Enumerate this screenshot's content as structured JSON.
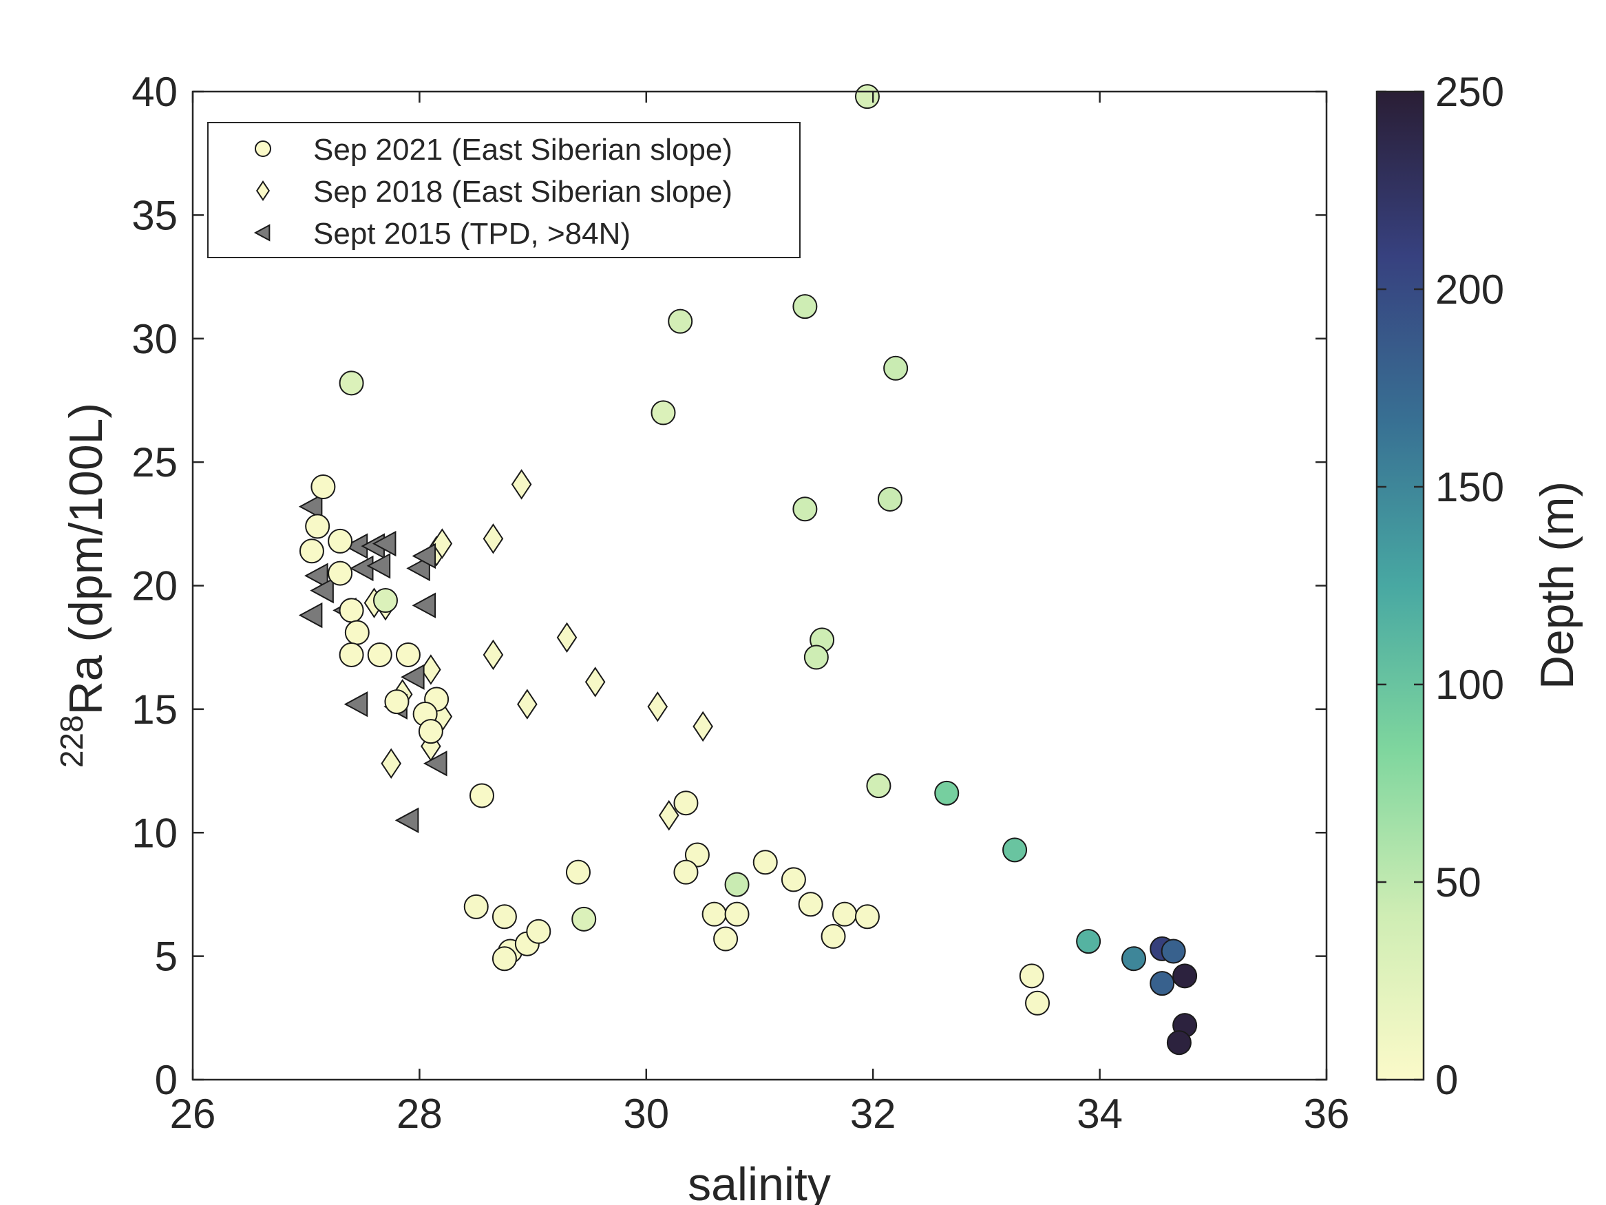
{
  "chart_data": {
    "type": "scatter",
    "xlabel": "salinity",
    "ylabel_sup": "228",
    "ylabel_main": "Ra (dpm/100L)",
    "xlim": [
      26,
      36
    ],
    "ylim": [
      0,
      40
    ],
    "xticks": [
      "26",
      "28",
      "30",
      "32",
      "34",
      "36"
    ],
    "yticks": [
      "0",
      "5",
      "10",
      "15",
      "20",
      "25",
      "30",
      "35",
      "40"
    ],
    "colorbar": {
      "label": "Depth (m)",
      "range": [
        0,
        250
      ],
      "ticks": [
        "0",
        "50",
        "100",
        "150",
        "200",
        "250"
      ],
      "colors": [
        "#fbfac9",
        "#cfedb4",
        "#7fd69e",
        "#48a8a2",
        "#387093",
        "#37417f",
        "#2a1e35"
      ]
    },
    "legend": {
      "placement": "top-left",
      "entries": [
        {
          "label": "Sep 2021 (East Siberian slope)",
          "marker": "circle"
        },
        {
          "label": "Sep 2018 (East Siberian slope)",
          "marker": "diamond"
        },
        {
          "label": "Sept 2015 (TPD, >84N)",
          "marker": "triangle-left"
        }
      ]
    },
    "series": [
      {
        "name": "Sep 2018 (East Siberian slope)",
        "marker": "diamond",
        "points": [
          [
            28.9,
            24.1,
            5
          ],
          [
            28.65,
            21.9,
            5
          ],
          [
            28.15,
            21.4,
            5
          ],
          [
            28.2,
            21.7,
            5
          ],
          [
            27.6,
            19.3,
            5
          ],
          [
            27.7,
            19.2,
            5
          ],
          [
            29.3,
            17.9,
            5
          ],
          [
            28.1,
            16.6,
            5
          ],
          [
            28.65,
            17.2,
            5
          ],
          [
            29.55,
            16.1,
            5
          ],
          [
            27.85,
            15.6,
            5
          ],
          [
            28.95,
            15.2,
            5
          ],
          [
            30.1,
            15.1,
            5
          ],
          [
            30.5,
            14.3,
            5
          ],
          [
            28.2,
            14.7,
            5
          ],
          [
            28.1,
            13.5,
            5
          ],
          [
            27.75,
            12.8,
            5
          ],
          [
            30.2,
            10.7,
            5
          ]
        ]
      },
      {
        "name": "Sept 2015 (TPD, >84N)",
        "marker": "triangle-left",
        "points": [
          [
            27.05,
            23.2,
            null
          ],
          [
            27.1,
            20.4,
            null
          ],
          [
            27.15,
            19.8,
            null
          ],
          [
            27.05,
            18.8,
            null
          ],
          [
            27.35,
            19.0,
            null
          ],
          [
            27.5,
            20.7,
            null
          ],
          [
            27.45,
            21.6,
            null
          ],
          [
            27.6,
            21.6,
            null
          ],
          [
            27.7,
            21.7,
            null
          ],
          [
            27.65,
            20.8,
            null
          ],
          [
            28.0,
            20.7,
            null
          ],
          [
            28.05,
            21.2,
            null
          ],
          [
            28.05,
            19.2,
            null
          ],
          [
            27.95,
            16.3,
            null
          ],
          [
            27.45,
            15.2,
            null
          ],
          [
            27.8,
            15.1,
            null
          ],
          [
            28.15,
            12.8,
            null
          ],
          [
            27.9,
            10.5,
            null
          ]
        ]
      },
      {
        "name": "Sep 2021 (East Siberian slope)",
        "marker": "circle",
        "points": [
          [
            31.95,
            39.8,
            35
          ],
          [
            30.3,
            30.7,
            38
          ],
          [
            31.4,
            31.3,
            42
          ],
          [
            27.4,
            28.2,
            30
          ],
          [
            32.2,
            28.8,
            45
          ],
          [
            30.15,
            27.0,
            30
          ],
          [
            31.4,
            23.1,
            42
          ],
          [
            32.15,
            23.5,
            45
          ],
          [
            27.15,
            24.0,
            3
          ],
          [
            27.1,
            22.4,
            3
          ],
          [
            27.05,
            21.4,
            3
          ],
          [
            27.3,
            21.8,
            3
          ],
          [
            27.3,
            20.5,
            3
          ],
          [
            27.4,
            19.0,
            3
          ],
          [
            27.45,
            18.1,
            3
          ],
          [
            27.4,
            17.2,
            3
          ],
          [
            27.65,
            17.2,
            3
          ],
          [
            27.9,
            17.2,
            3
          ],
          [
            27.7,
            19.4,
            30
          ],
          [
            28.15,
            15.4,
            3
          ],
          [
            28.05,
            14.8,
            3
          ],
          [
            28.1,
            14.1,
            3
          ],
          [
            27.8,
            15.3,
            3
          ],
          [
            28.55,
            11.5,
            3
          ],
          [
            31.55,
            17.8,
            42
          ],
          [
            31.5,
            17.1,
            42
          ],
          [
            30.35,
            11.2,
            5
          ],
          [
            32.05,
            11.9,
            40
          ],
          [
            32.65,
            11.6,
            90
          ],
          [
            33.25,
            9.3,
            100
          ],
          [
            30.45,
            9.1,
            5
          ],
          [
            30.35,
            8.4,
            5
          ],
          [
            31.05,
            8.8,
            5
          ],
          [
            31.3,
            8.1,
            5
          ],
          [
            30.8,
            7.9,
            45
          ],
          [
            29.4,
            8.4,
            5
          ],
          [
            28.5,
            7.0,
            5
          ],
          [
            28.75,
            6.6,
            5
          ],
          [
            28.8,
            5.2,
            5
          ],
          [
            28.75,
            4.9,
            5
          ],
          [
            28.95,
            5.5,
            5
          ],
          [
            29.05,
            6.0,
            5
          ],
          [
            29.45,
            6.5,
            30
          ],
          [
            30.6,
            6.7,
            5
          ],
          [
            30.8,
            6.7,
            5
          ],
          [
            30.7,
            5.7,
            5
          ],
          [
            31.45,
            7.1,
            5
          ],
          [
            31.75,
            6.7,
            5
          ],
          [
            31.65,
            5.8,
            5
          ],
          [
            31.95,
            6.6,
            5
          ],
          [
            33.4,
            4.2,
            5
          ],
          [
            33.45,
            3.1,
            5
          ],
          [
            33.9,
            5.6,
            115
          ],
          [
            34.3,
            4.9,
            150
          ],
          [
            34.55,
            5.3,
            210
          ],
          [
            34.65,
            5.2,
            180
          ],
          [
            34.55,
            3.9,
            180
          ],
          [
            34.75,
            4.2,
            245
          ],
          [
            34.75,
            2.2,
            245
          ],
          [
            34.7,
            1.5,
            245
          ]
        ]
      }
    ]
  }
}
